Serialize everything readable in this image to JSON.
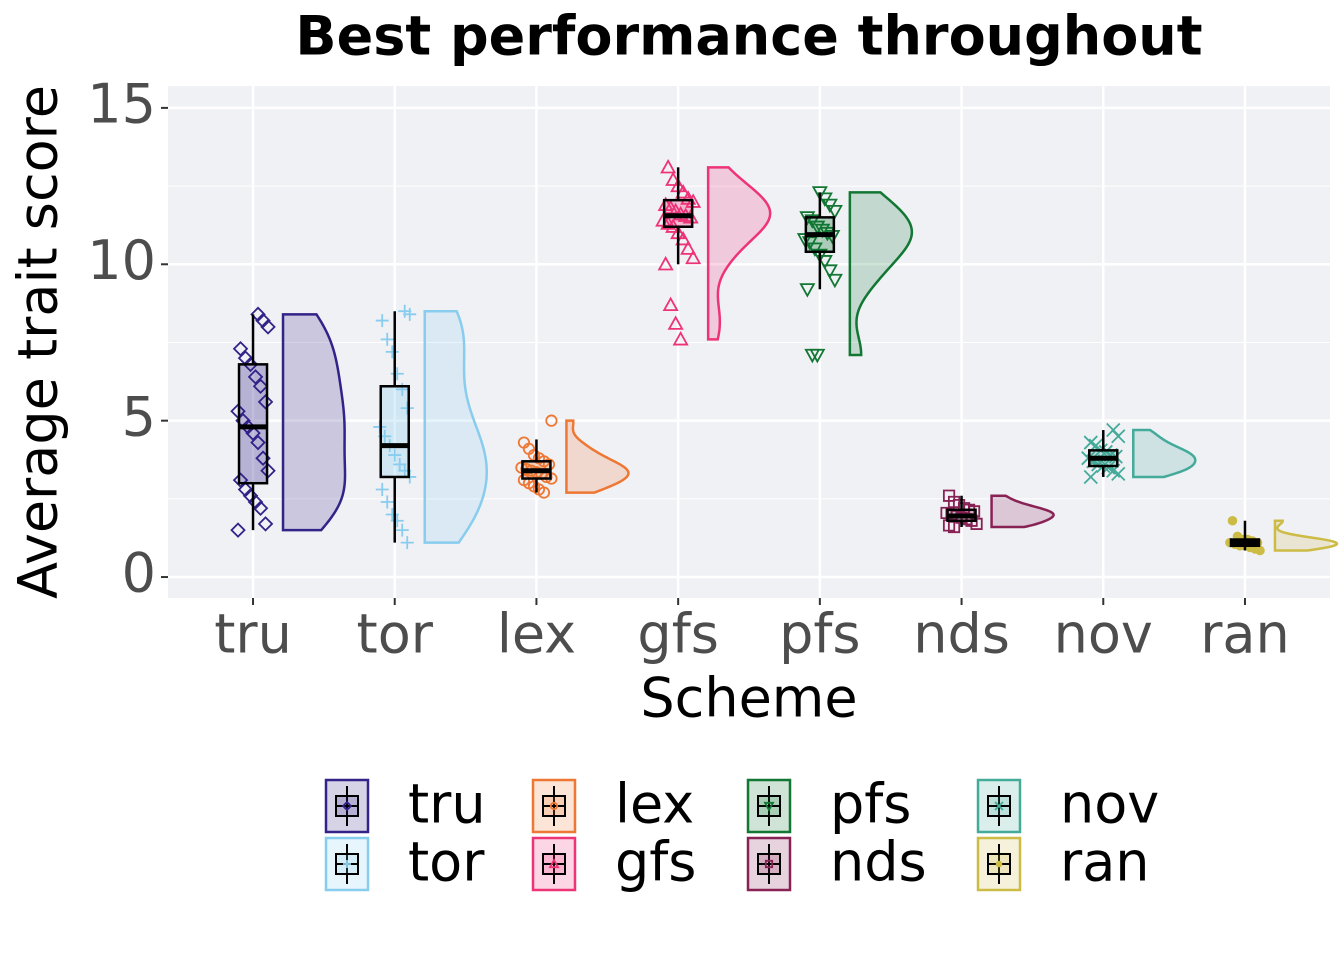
{
  "chart_data": {
    "type": "raincloud",
    "title": "Best performance throughout",
    "x_label": "Scheme",
    "y_label": "Average trait score",
    "categories": [
      "tru",
      "tor",
      "lex",
      "gfs",
      "pfs",
      "nds",
      "nov",
      "ran"
    ],
    "ylim": [
      -0.67,
      15.7
    ],
    "yticks": [
      0,
      5,
      10,
      15
    ],
    "grid": true,
    "legend": "bottom",
    "series": [
      {
        "name": "tru",
        "color": "#332288",
        "shape": "diamond",
        "box": {
          "min": 1.5,
          "q1": 3.0,
          "median": 4.8,
          "q3": 6.8,
          "max": 8.4
        },
        "points": [
          1.5,
          1.7,
          2.2,
          2.4,
          2.6,
          2.8,
          3.1,
          3.4,
          3.8,
          4.3,
          4.6,
          4.8,
          5.0,
          5.3,
          5.6,
          6.1,
          6.4,
          6.8,
          7.0,
          7.3,
          8.0,
          8.2,
          8.4
        ]
      },
      {
        "name": "tor",
        "color": "#88CCEE",
        "shape": "plus",
        "box": {
          "min": 1.1,
          "q1": 3.2,
          "median": 4.2,
          "q3": 6.1,
          "max": 8.5
        },
        "points": [
          1.1,
          1.5,
          1.8,
          2.0,
          2.4,
          2.8,
          3.2,
          3.4,
          3.6,
          3.9,
          4.2,
          4.5,
          4.8,
          5.4,
          6.0,
          6.5,
          7.2,
          7.6,
          8.2,
          8.4,
          8.5
        ]
      },
      {
        "name": "lex",
        "color": "#EE7733",
        "shape": "circle",
        "box": {
          "min": 2.7,
          "q1": 3.15,
          "median": 3.4,
          "q3": 3.7,
          "max": 4.4
        },
        "points": [
          2.7,
          2.8,
          2.9,
          3.0,
          3.1,
          3.15,
          3.2,
          3.3,
          3.35,
          3.4,
          3.45,
          3.5,
          3.6,
          3.7,
          3.8,
          3.9,
          4.1,
          4.3,
          5.0
        ]
      },
      {
        "name": "gfs",
        "color": "#EE3377",
        "shape": "triangle-up",
        "box": {
          "min": 10.0,
          "q1": 11.2,
          "median": 11.55,
          "q3": 12.05,
          "max": 13.1
        },
        "points": [
          7.6,
          8.1,
          8.7,
          10.0,
          10.2,
          10.5,
          10.8,
          11.0,
          11.2,
          11.3,
          11.4,
          11.5,
          11.55,
          11.6,
          11.7,
          11.8,
          11.9,
          12.0,
          12.1,
          12.3,
          12.5,
          12.7,
          13.1
        ]
      },
      {
        "name": "pfs",
        "color": "#117733",
        "shape": "triangle-down",
        "box": {
          "min": 9.2,
          "q1": 10.4,
          "median": 10.95,
          "q3": 11.5,
          "max": 12.3
        },
        "points": [
          7.1,
          7.1,
          9.2,
          9.5,
          9.8,
          10.1,
          10.3,
          10.5,
          10.7,
          10.8,
          10.9,
          11.0,
          11.1,
          11.2,
          11.4,
          11.5,
          11.7,
          11.9,
          12.1,
          12.3
        ]
      },
      {
        "name": "nds",
        "color": "#882255",
        "shape": "square",
        "box": {
          "min": 1.6,
          "q1": 1.8,
          "median": 1.95,
          "q3": 2.15,
          "max": 2.6
        },
        "points": [
          1.6,
          1.65,
          1.7,
          1.8,
          1.85,
          1.9,
          1.95,
          2.0,
          2.05,
          2.1,
          2.15,
          2.2,
          2.3,
          2.4,
          2.6
        ]
      },
      {
        "name": "nov",
        "color": "#44AA99",
        "shape": "cross",
        "box": {
          "min": 3.2,
          "q1": 3.55,
          "median": 3.8,
          "q3": 4.05,
          "max": 4.7
        },
        "points": [
          3.2,
          3.3,
          3.4,
          3.5,
          3.55,
          3.6,
          3.7,
          3.8,
          3.85,
          3.9,
          4.0,
          4.05,
          4.2,
          4.3,
          4.5,
          4.7
        ]
      },
      {
        "name": "ran",
        "color": "#CCBB44",
        "shape": "dot",
        "box": {
          "min": 0.85,
          "q1": 1.0,
          "median": 1.1,
          "q3": 1.2,
          "max": 1.8
        },
        "points": [
          0.85,
          0.9,
          0.95,
          1.0,
          1.0,
          1.05,
          1.1,
          1.1,
          1.15,
          1.2,
          1.2,
          1.3,
          1.8
        ]
      }
    ]
  }
}
